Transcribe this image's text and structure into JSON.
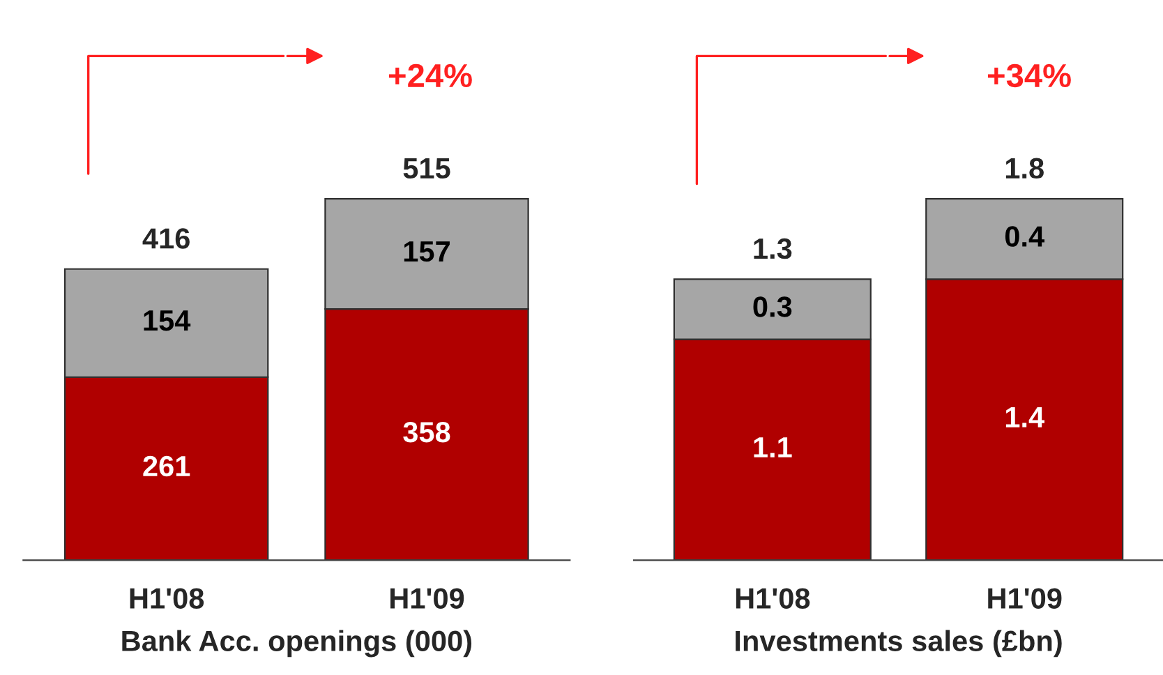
{
  "chart_data": [
    {
      "type": "bar",
      "stacked": true,
      "categories": [
        "H1'08",
        "H1'09"
      ],
      "xlabel": "Bank Acc. openings (000)",
      "tick_labels": "x",
      "data_labels": true,
      "totals": [
        "416",
        "515"
      ],
      "annotations": [
        "+24%"
      ],
      "series": [
        {
          "color": "#b00000",
          "values": [
            261,
            358
          ]
        },
        {
          "color": "#a6a6a6",
          "values": [
            154,
            157
          ]
        }
      ]
    },
    {
      "type": "bar",
      "stacked": true,
      "categories": [
        "H1'08",
        "H1'09"
      ],
      "xlabel": "Investments sales (£bn)",
      "tick_labels": "x",
      "data_labels": true,
      "totals": [
        "1.3",
        "1.8"
      ],
      "annotations": [
        "+34%"
      ],
      "series": [
        {
          "color": "#b00000",
          "values": [
            1.1,
            1.4
          ]
        },
        {
          "color": "#a6a6a6",
          "values": [
            0.3,
            0.4
          ]
        }
      ]
    }
  ]
}
